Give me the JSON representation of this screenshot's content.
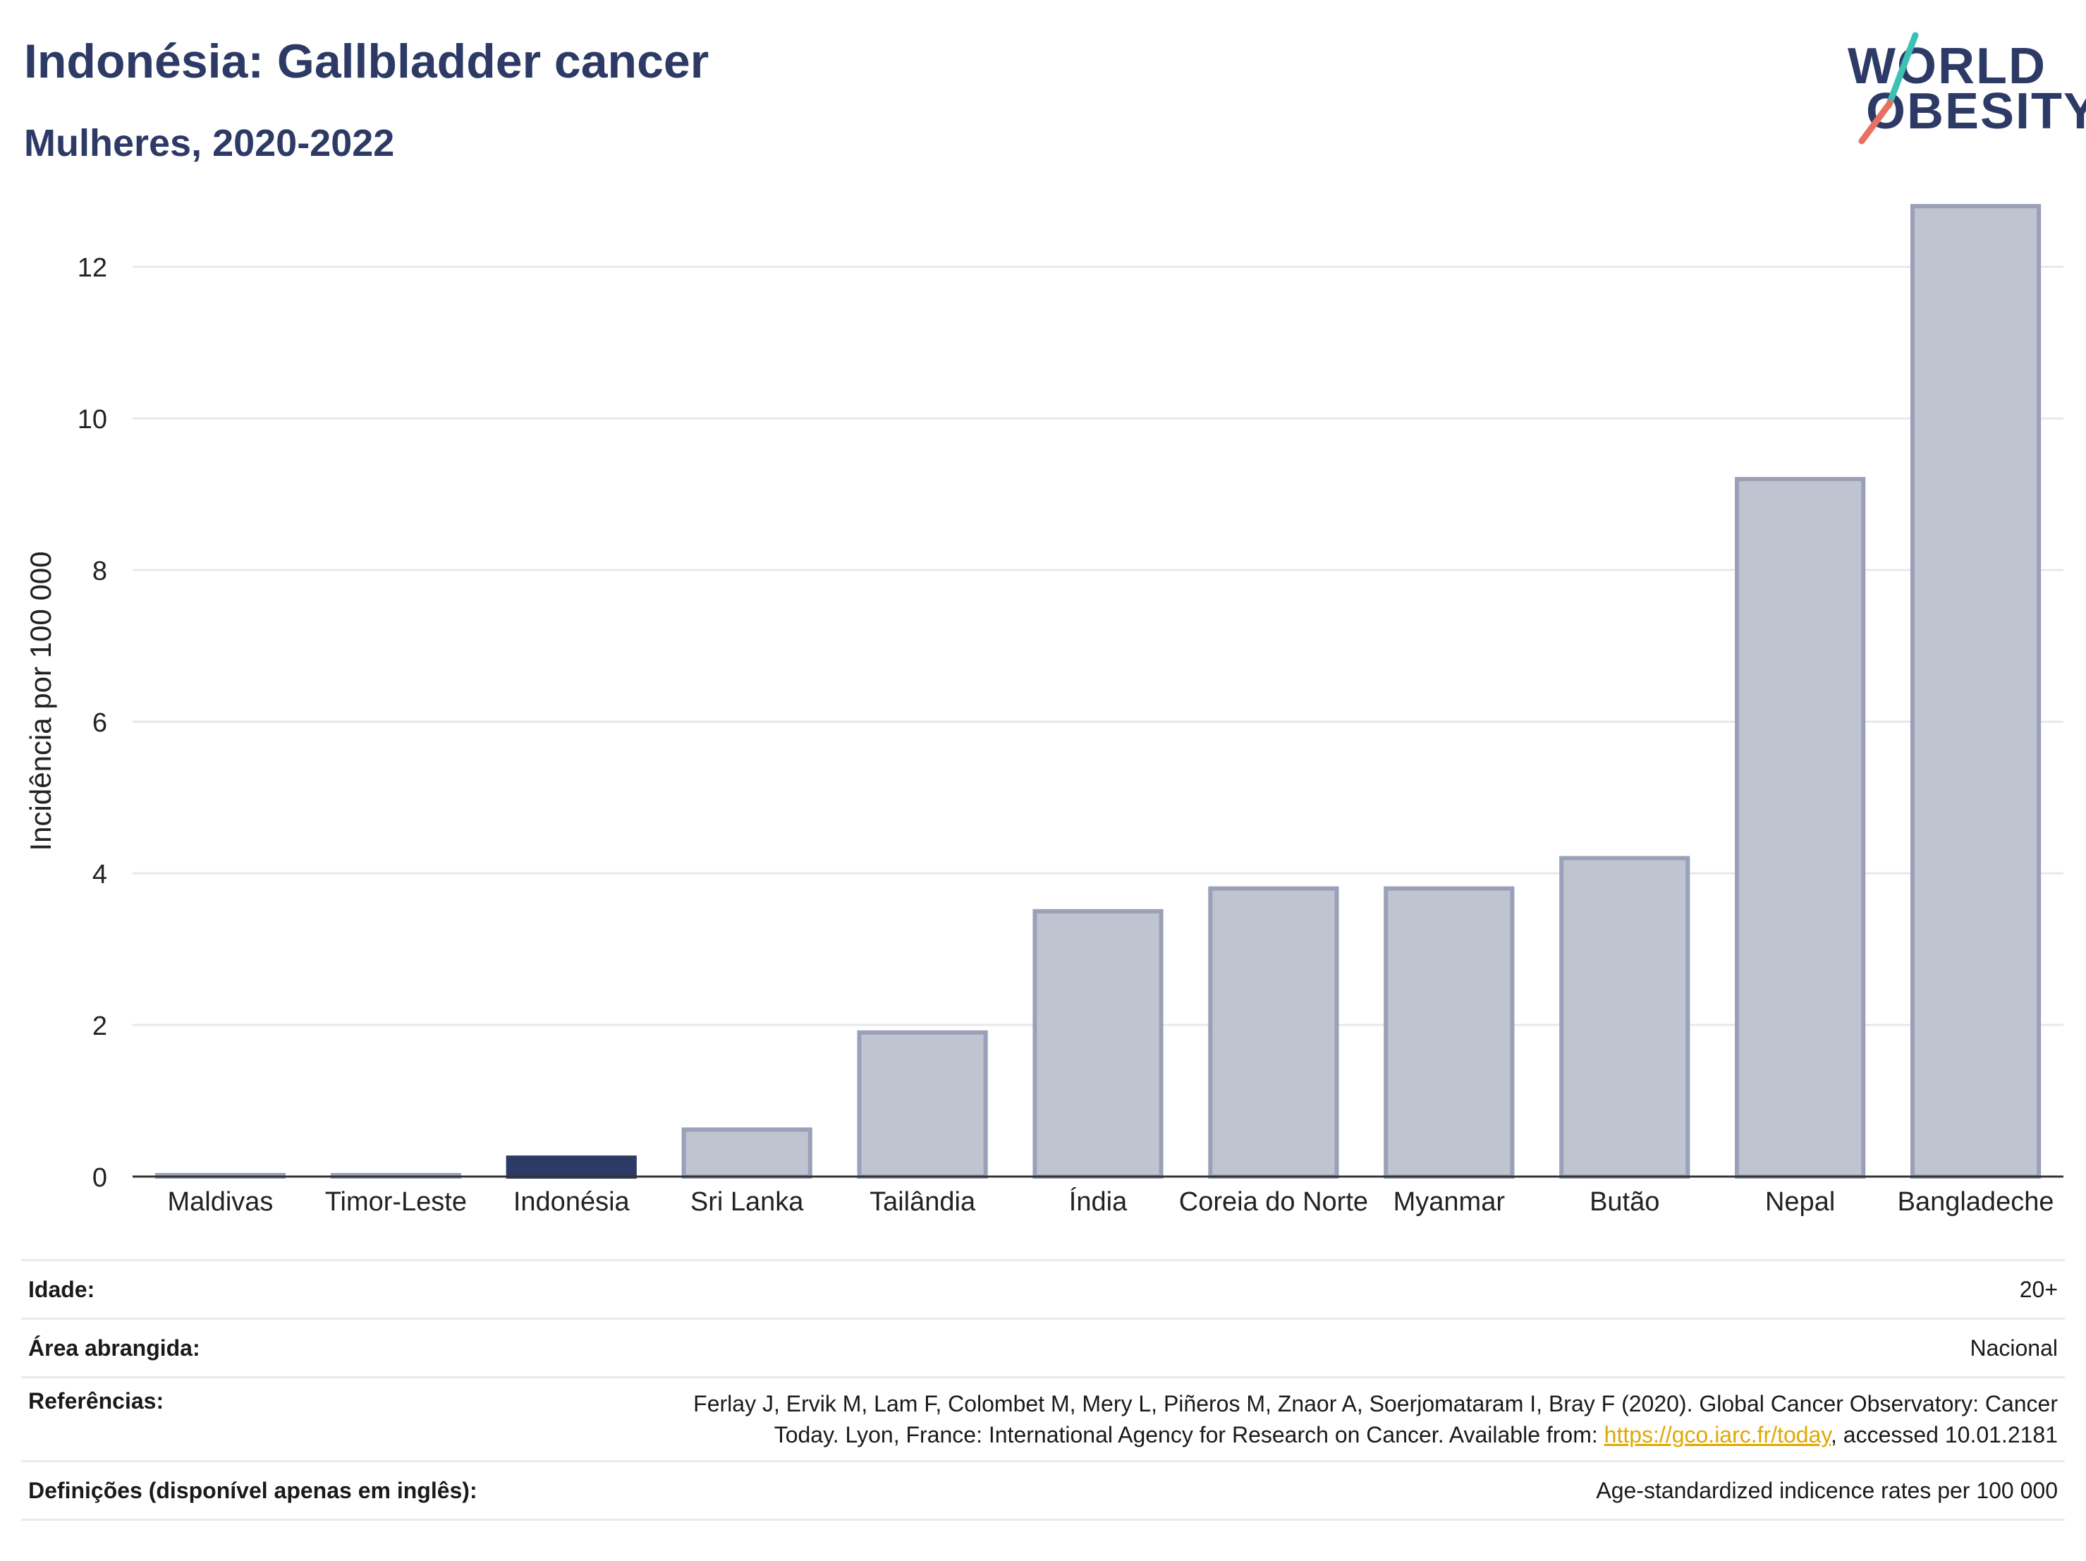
{
  "header": {
    "title": "Indonésia: Gallbladder cancer",
    "subtitle": "Mulheres, 2020-2022"
  },
  "logo": {
    "line1": "WORLD",
    "line2": "OBESITY",
    "slash_colors": [
      "#3cc1b4",
      "#e8705f"
    ]
  },
  "colors": {
    "highlight": "#2d3a66",
    "bar_fill": "#c0c4d1",
    "bar_stroke": "#9aa0b7",
    "gridline": "#e6e8ee",
    "axis": "#333333"
  },
  "chart_data": {
    "type": "bar",
    "categories": [
      "Maldivas",
      "Timor-Leste",
      "Indonésia",
      "Sri Lanka",
      "Tailândia",
      "Índia",
      "Coreia do Norte",
      "Myanmar",
      "Butão",
      "Nepal",
      "Bangladeche"
    ],
    "values": [
      0.02,
      0.02,
      0.25,
      0.62,
      1.9,
      3.5,
      3.8,
      3.8,
      4.2,
      9.2,
      12.8
    ],
    "highlight": "Indonésia",
    "ylabel": "Incidência por 100 000",
    "xlabel": "",
    "ylim": [
      0,
      13.1
    ],
    "yticks": [
      0,
      2,
      4,
      6,
      8,
      10,
      12
    ],
    "grid": true
  },
  "info": [
    {
      "label": "Idade:",
      "value": "20+"
    },
    {
      "label": "Área abrangida:",
      "value": "Nacional"
    },
    {
      "label": "Referências:",
      "value_line1": "Ferlay J, Ervik M, Lam F, Colombet M, Mery L, Piñeros M, Znaor A, Soerjomataram I, Bray F (2020). Global Cancer Observatory: Cancer",
      "value_line2_pre": "Today. Lyon, France: International Agency for Research on Cancer. Available from: ",
      "link": "https://gco.iarc.fr/today",
      "value_line2_post": ", accessed 10.01.2181"
    },
    {
      "label": "Definições (disponível apenas em inglês):",
      "value": "Age-standardized indicence rates per 100 000"
    }
  ]
}
